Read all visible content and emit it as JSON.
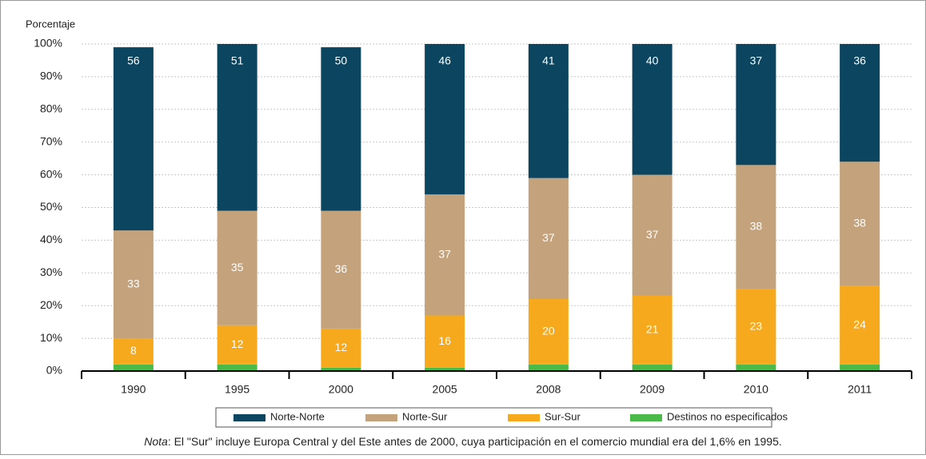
{
  "chart_data": {
    "type": "stacked-bar",
    "ylabel": "Porcentaje",
    "categories": [
      "1990",
      "1995",
      "2000",
      "2005",
      "2008",
      "2009",
      "2010",
      "2011"
    ],
    "series": [
      {
        "name": "Norte-Norte",
        "color": "#0c4560",
        "values": [
          56,
          51,
          50,
          46,
          41,
          40,
          37,
          36
        ]
      },
      {
        "name": "Norte-Sur",
        "color": "#c3a27c",
        "values": [
          33,
          35,
          36,
          37,
          37,
          37,
          38,
          38
        ]
      },
      {
        "name": "Sur-Sur",
        "color": "#f6a91d",
        "values": [
          8,
          12,
          12,
          16,
          20,
          21,
          23,
          24
        ]
      },
      {
        "name": "Destinos no especificados",
        "color": "#4bb94a",
        "values": [
          2,
          2,
          1,
          1,
          2,
          2,
          2,
          2
        ]
      }
    ],
    "stack_order": [
      3,
      2,
      1,
      0
    ],
    "labeled_series": [
      0,
      1,
      2
    ],
    "ylim": [
      0,
      100
    ],
    "yticks": [
      {
        "value": 0,
        "label": "0%"
      },
      {
        "value": 10,
        "label": "10%"
      },
      {
        "value": 20,
        "label": "20%"
      },
      {
        "value": 30,
        "label": "30%"
      },
      {
        "value": 40,
        "label": "40%"
      },
      {
        "value": 50,
        "label": "50%"
      },
      {
        "value": 60,
        "label": "60%"
      },
      {
        "value": 70,
        "label": "70%"
      },
      {
        "value": 80,
        "label": "80%"
      },
      {
        "value": 90,
        "label": "90%"
      },
      {
        "value": 100,
        "label": "100%"
      }
    ],
    "grid": true,
    "legend": "bottom",
    "note": {
      "label": "Nota",
      "text": ": El \"Sur\" incluye Europa Central y del Este antes de 2000, cuya participación en el comercio mundial era del 1,6% en 1995."
    }
  }
}
